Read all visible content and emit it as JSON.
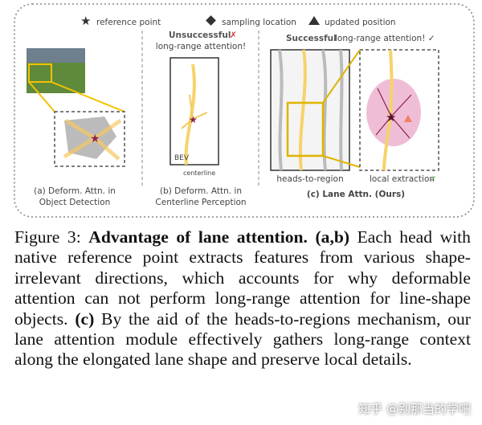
{
  "figure": {
    "legend": {
      "reference": "reference point",
      "sampling": "sampling location",
      "updated": "updated position"
    },
    "panel_a": {
      "caption_line1": "(a) Deform. Attn. in",
      "caption_line2": "Object Detection"
    },
    "panel_b": {
      "status": "Unsuccessful",
      "status_mark": "✗",
      "subtitle": "long-range attention!",
      "bev": "BEV",
      "centerline": "centerline",
      "caption_line1": "(b) Deform. Attn. in",
      "caption_line2": "Centerline Perception"
    },
    "panel_c": {
      "status": "Successful",
      "subtitle": "long-range attention! ✓",
      "heads": "heads-to-region",
      "local": "local extraction",
      "local_mark": "✓",
      "caption": "(c) Lane Attn. (Ours)"
    }
  },
  "caption": {
    "label": "Figure 3:",
    "title": "Advantage of lane attention.",
    "ab_tag": "(a,b)",
    "ab_text": "Each head with native reference point extracts features from various shape-irrelevant directions, which accounts for why deformable attention can not perform long-range attention for line-shape objects.",
    "c_tag": "(c)",
    "c_text": "By the aid of the heads-to-regions mechanism, our lane attention module effectively gathers long-range context along the elongated lane shape and preserve local details."
  },
  "watermark": "知乎 @别那当的学吧"
}
